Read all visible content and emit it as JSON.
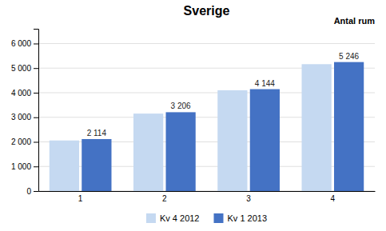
{
  "chart_data": {
    "type": "bar",
    "title": "Sverige",
    "xlabel": "Antal rum",
    "categories": [
      "1",
      "2",
      "3",
      "4"
    ],
    "series": [
      {
        "name": "Kv 4 2012",
        "color": "#c5d9f1",
        "values": [
          2057,
          3150,
          4100,
          5160
        ]
      },
      {
        "name": "Kv 1 2013",
        "color": "#4472c4",
        "values": [
          2114,
          3206,
          4144,
          5246
        ],
        "data_labels": true,
        "value_labels": [
          "2 114",
          "3 206",
          "4 144",
          "5 246"
        ]
      }
    ],
    "ylim": [
      0,
      6600
    ],
    "yticks": [
      0,
      {
        "value": 1000,
        "label": "1 000"
      },
      {
        "value": 2000,
        "label": "2 000"
      },
      {
        "value": 3000,
        "label": "3 000"
      },
      {
        "value": 4000,
        "label": "4 000"
      },
      {
        "value": 5000,
        "label": "5 000"
      },
      {
        "value": 6000,
        "label": "6 000"
      }
    ],
    "grid": true,
    "legend": "bottom"
  }
}
